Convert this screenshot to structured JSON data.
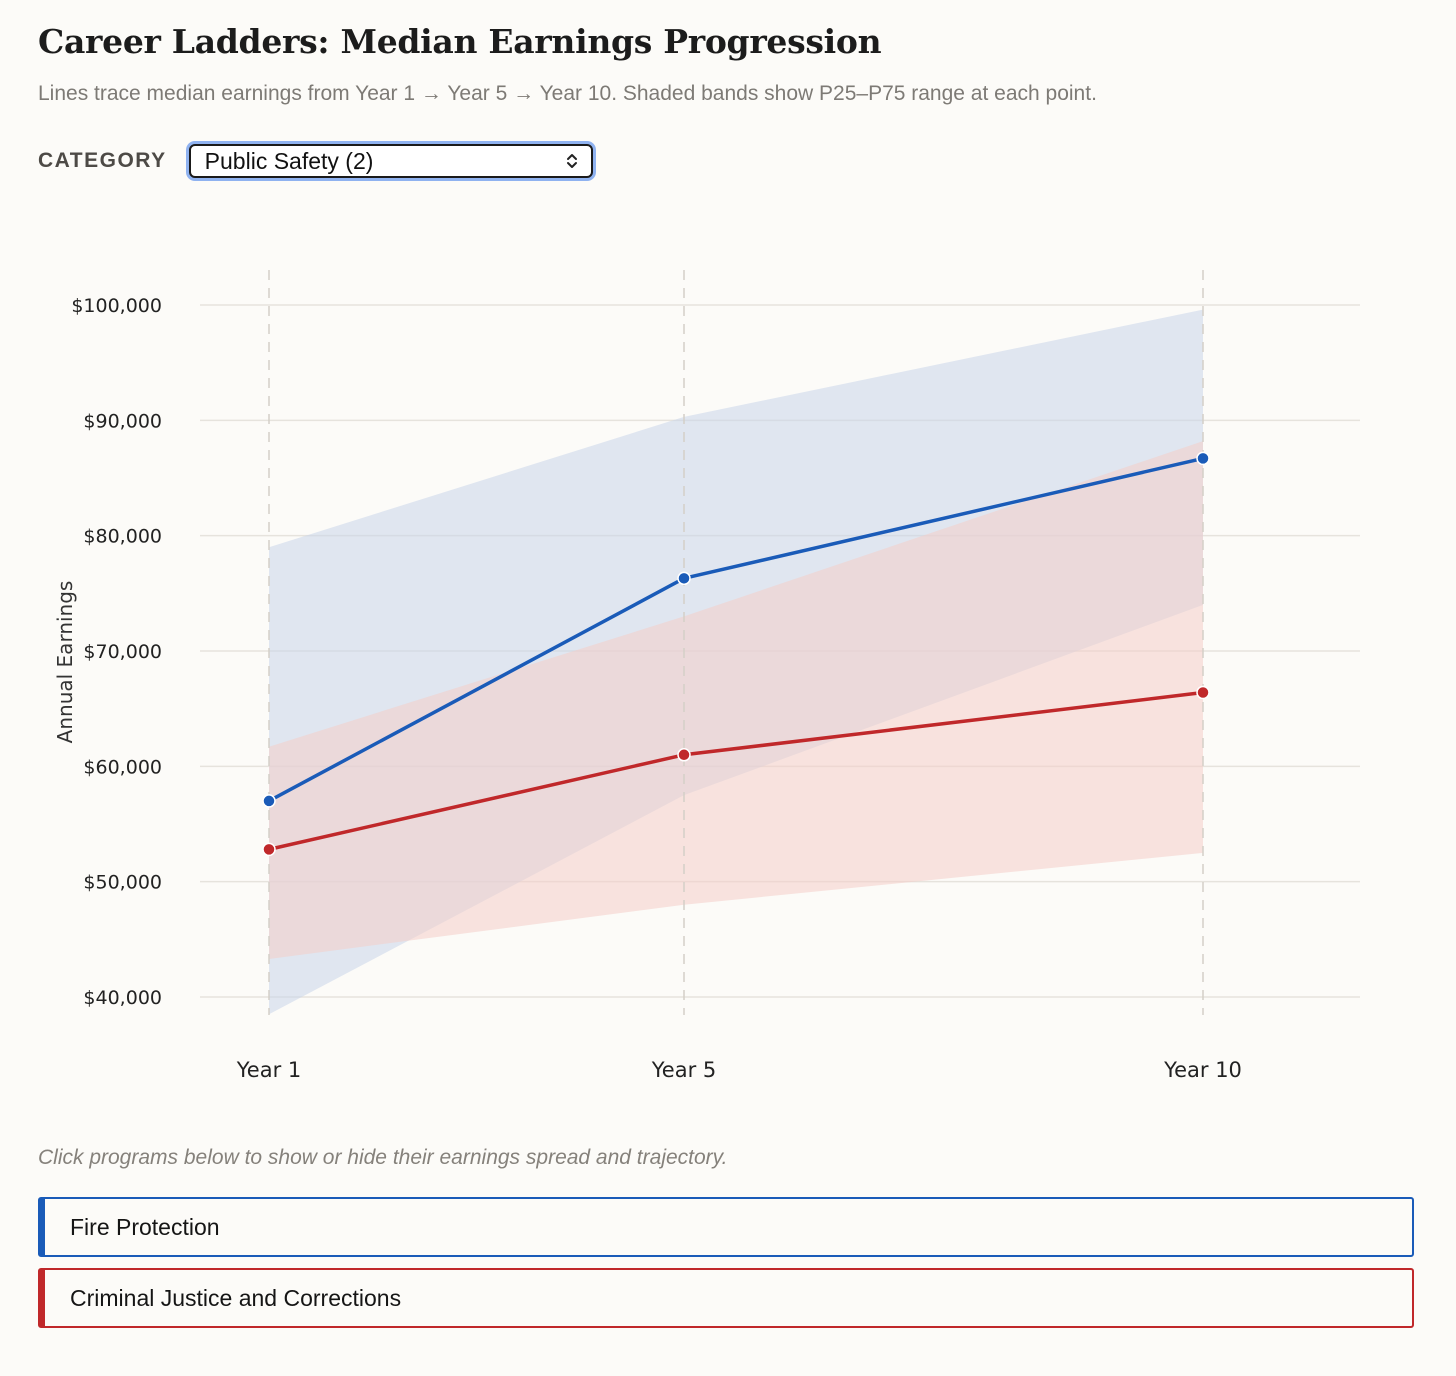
{
  "header": {
    "title": "Career Ladders: Median Earnings Progression",
    "subtitle": "Lines trace median earnings from Year 1 → Year 5 → Year 10. Shaded bands show P25–P75 range at each point."
  },
  "controls": {
    "category_label": "CATEGORY",
    "category_value": "Public Safety (2)"
  },
  "hint": "Click programs below to show or hide their earnings spread and trajectory.",
  "chart_data": {
    "type": "line",
    "categories": [
      "Year 1",
      "Year 5",
      "Year 10"
    ],
    "ylabel": "Annual Earnings",
    "ylim": [
      35000,
      103000
    ],
    "yticks": [
      40000,
      50000,
      60000,
      70000,
      80000,
      90000,
      100000
    ],
    "ytick_labels": [
      "$40,000",
      "$50,000",
      "$60,000",
      "$70,000",
      "$80,000",
      "$90,000",
      "$100,000"
    ],
    "grid": true,
    "series": [
      {
        "name": "Fire Protection",
        "color": "#1a5bb8",
        "band_color": "#c9d6ea",
        "median": [
          57000,
          76300,
          86700
        ],
        "p25": [
          38500,
          57500,
          74000
        ],
        "p75": [
          79000,
          90300,
          99600
        ]
      },
      {
        "name": "Criminal Justice and Corrections",
        "color": "#c0282a",
        "band_color": "#f4cdc9",
        "median": [
          52800,
          61000,
          66400
        ],
        "p25": [
          43300,
          48000,
          52500
        ],
        "p75": [
          61700,
          73000,
          88200
        ]
      }
    ]
  }
}
